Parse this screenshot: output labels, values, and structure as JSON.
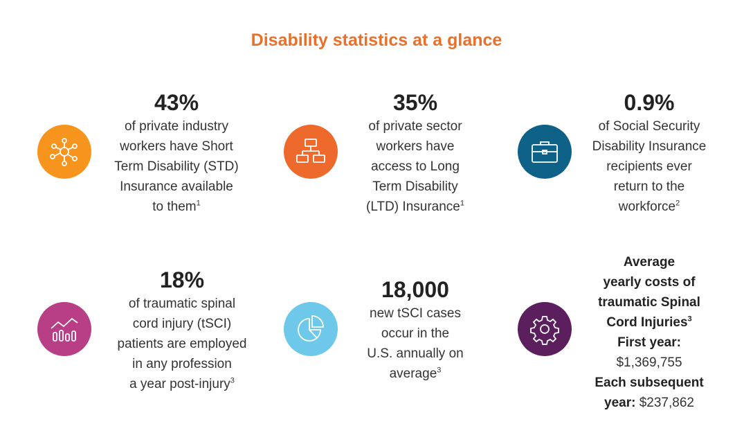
{
  "title": "Disability statistics at a glance",
  "colors": {
    "title": "#e8702a",
    "orange": "#f7941d",
    "red_orange": "#ee6a2c",
    "teal": "#0e6287",
    "magenta": "#b83f86",
    "light_blue": "#6ec8e9",
    "purple": "#5b1f5e"
  },
  "items": [
    {
      "stat": "43%",
      "lines": [
        "of private industry",
        "workers have Short",
        "Term Disability (STD)",
        "Insurance available",
        "to them"
      ],
      "footnote": "1",
      "icon": "network-nodes-icon"
    },
    {
      "stat": "35%",
      "lines": [
        "of private sector",
        "workers have",
        "access to Long",
        "Term Disability",
        "(LTD) Insurance"
      ],
      "footnote": "1",
      "icon": "org-chart-icon"
    },
    {
      "stat": "0.9%",
      "lines": [
        "of Social Security",
        "Disability Insurance",
        "recipients ever",
        "return to the",
        "workforce"
      ],
      "footnote": "2",
      "icon": "briefcase-icon"
    },
    {
      "stat": "18%",
      "lines": [
        "of traumatic spinal",
        "cord injury (tSCI)",
        "patients are employed",
        "in any profession",
        "a year post-injury"
      ],
      "footnote": "3",
      "icon": "bar-line-chart-icon"
    },
    {
      "stat": "18,000",
      "lines": [
        "new tSCI cases",
        "occur in the",
        "U.S. annually on",
        "average"
      ],
      "footnote": "3",
      "icon": "pie-chart-icon"
    },
    {
      "heading_lines": [
        "Average",
        "yearly costs of",
        "traumatic Spinal",
        "Cord Injuries"
      ],
      "footnote": "3",
      "first_label": "First year:",
      "first_value": "$1,369,755",
      "subsequent_label_1": "Each subsequent",
      "subsequent_label_2": "year:",
      "subsequent_value": " $237,862",
      "icon": "gear-icon"
    }
  ]
}
